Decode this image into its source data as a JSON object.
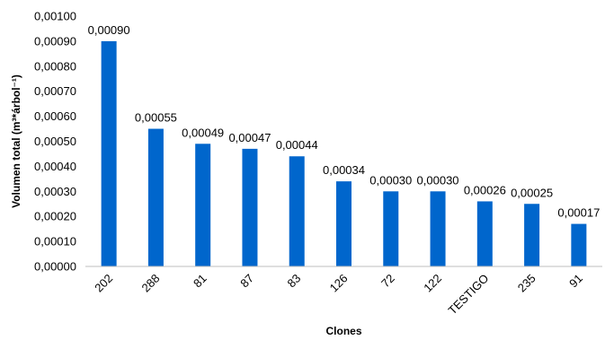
{
  "chart_data": {
    "type": "bar",
    "categories": [
      "202",
      "288",
      "81",
      "87",
      "83",
      "126",
      "72",
      "122",
      "TESTIGO",
      "235",
      "91"
    ],
    "values": [
      0.0009,
      0.00055,
      0.00049,
      0.00047,
      0.00044,
      0.00034,
      0.0003,
      0.0003,
      0.00026,
      0.00025,
      0.00017
    ],
    "data_labels": [
      "0,00090",
      "0,00055",
      "0,00049",
      "0,00047",
      "0,00044",
      "0,00034",
      "0,00030",
      "0,00030",
      "0,00026",
      "0,00025",
      "0,00017"
    ],
    "ylim": [
      0,
      0.001
    ],
    "yticks": [
      0,
      0.0001,
      0.0002,
      0.0003,
      0.0004,
      0.0005,
      0.0006,
      0.0007,
      0.0008,
      0.0009,
      0.001
    ],
    "ytick_labels": [
      "0,00000",
      "0,00010",
      "0,00020",
      "0,00030",
      "0,00040",
      "0,00050",
      "0,00060",
      "0,00070",
      "0,00080",
      "0,00090",
      "0,00100"
    ],
    "xlabel": "Clones",
    "ylabel": "Volumen total (m³*árbol⁻¹)",
    "grid": false,
    "legend": "none",
    "bar_color": "#0066CC"
  }
}
